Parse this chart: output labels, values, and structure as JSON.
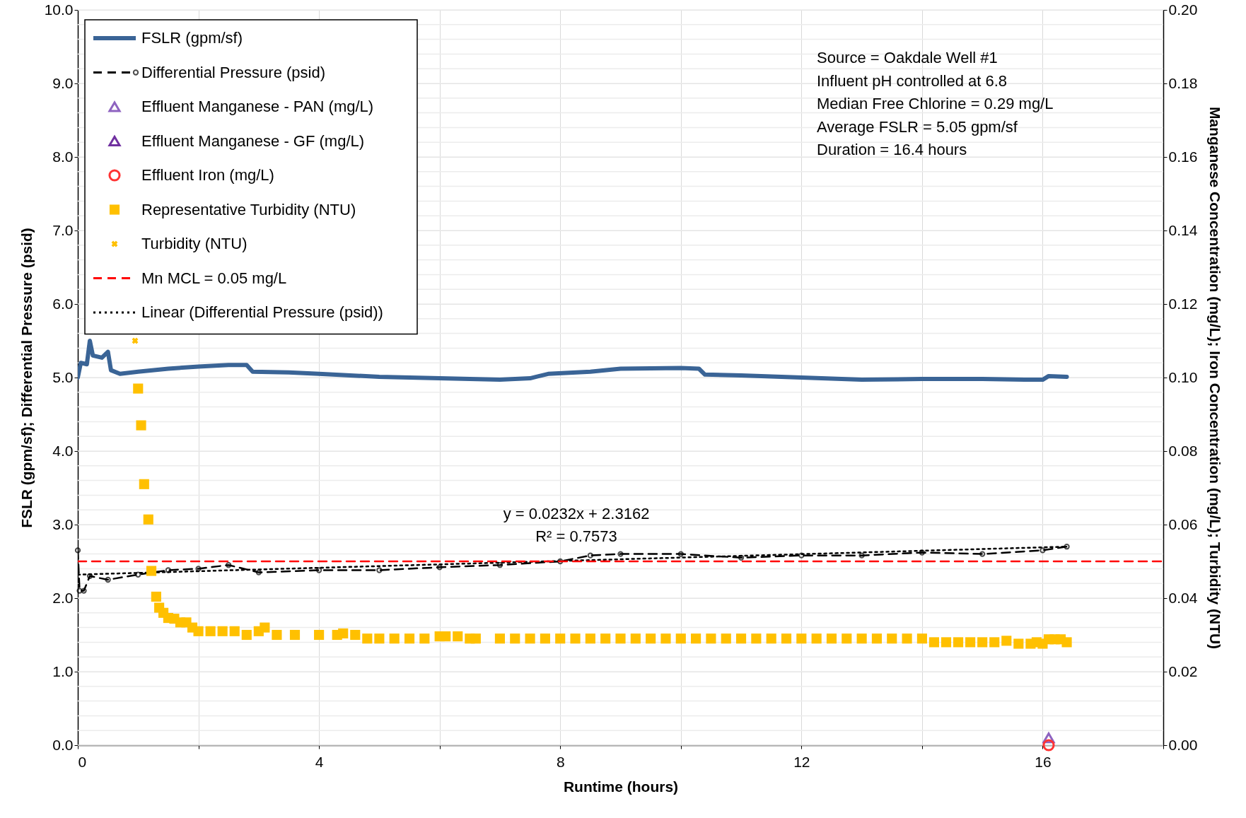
{
  "chart_data": {
    "type": "line",
    "xlabel": "Runtime (hours)",
    "ylabel": "FSLR (gpm/sf); Differential Pressure (psid)",
    "y2label": "Manganese Concentration (mg/L); Iron Concentration (mg/L); Turbidity (NTU)",
    "xlim": [
      0,
      18
    ],
    "xticks": [
      0,
      {
        "value": 2,
        "label": null
      },
      4,
      {
        "value": 6,
        "label": null
      },
      8,
      {
        "value": 10,
        "label": null
      },
      12,
      {
        "value": 14,
        "label": null
      },
      16,
      {
        "value": 18,
        "label": null
      }
    ],
    "ylim": [
      0,
      10
    ],
    "yticks": [
      {
        "value": 0,
        "label": "0.0"
      },
      {
        "value": 1,
        "label": "1.0"
      },
      {
        "value": 2,
        "label": "2.0"
      },
      {
        "value": 3,
        "label": "3.0"
      },
      {
        "value": 4,
        "label": "4.0"
      },
      {
        "value": 5,
        "label": "5.0"
      },
      {
        "value": 6,
        "label": "6.0"
      },
      {
        "value": 7,
        "label": "7.0"
      },
      {
        "value": 8,
        "label": "8.0"
      },
      {
        "value": 9,
        "label": "9.0"
      },
      {
        "value": 10,
        "label": "10.0"
      }
    ],
    "y2lim": [
      0,
      0.2
    ],
    "y2ticks": [
      {
        "value": 0,
        "label": "0.00"
      },
      {
        "value": 0.02,
        "label": "0.02"
      },
      {
        "value": 0.04,
        "label": "0.04"
      },
      {
        "value": 0.06,
        "label": "0.06"
      },
      {
        "value": 0.08,
        "label": "0.08"
      },
      {
        "value": 0.1,
        "label": "0.10"
      },
      {
        "value": 0.12,
        "label": "0.12"
      },
      {
        "value": 0.14,
        "label": "0.14"
      },
      {
        "value": 0.16,
        "label": "0.16"
      },
      {
        "value": 0.18,
        "label": "0.18"
      },
      {
        "value": 0.2,
        "label": "0.20"
      }
    ],
    "grid": true,
    "legend": "top left",
    "annotations": [
      "Source = Oakdale Well #1",
      "Influent pH controlled at 6.8",
      "Median Free Chlorine = 0.29 mg/L",
      "Average FSLR = 5.05 gpm/sf",
      "Duration = 16.4 hours",
      "y = 0.0232x + 2.3162",
      "R² = 0.7573"
    ],
    "series": [
      {
        "name": "FSLR (gpm/sf)",
        "color": "#3a6496",
        "line_style": "solid",
        "marker": "none",
        "x": [
          0,
          0.05,
          0.15,
          0.2,
          0.25,
          0.4,
          0.5,
          0.55,
          0.7,
          1,
          1.5,
          2,
          2.5,
          2.8,
          2.9,
          3.5,
          4,
          5,
          6,
          7,
          7.5,
          7.8,
          8.5,
          9,
          10,
          10.3,
          10.4,
          11,
          12,
          13,
          14,
          15,
          15.7,
          16,
          16.1,
          16.4
        ],
        "values": [
          5.0,
          5.2,
          5.18,
          5.5,
          5.3,
          5.27,
          5.35,
          5.1,
          5.05,
          5.08,
          5.12,
          5.15,
          5.17,
          5.17,
          5.08,
          5.07,
          5.05,
          5.01,
          4.99,
          4.97,
          4.99,
          5.05,
          5.08,
          5.12,
          5.13,
          5.12,
          5.04,
          5.03,
          5.0,
          4.97,
          4.98,
          4.98,
          4.97,
          4.97,
          5.02,
          5.01
        ]
      },
      {
        "name": "Differential Pressure (psid)",
        "color": "#000000",
        "line_style": "dashed",
        "marker": "circle",
        "x": [
          0,
          0.03,
          0.1,
          0.2,
          0.5,
          1,
          1.5,
          2,
          2.5,
          3,
          4,
          5,
          6,
          7,
          8,
          8.5,
          9,
          10,
          11,
          12,
          13,
          14,
          15,
          16,
          16.4
        ],
        "values": [
          2.65,
          2.1,
          2.1,
          2.3,
          2.25,
          2.32,
          2.38,
          2.4,
          2.45,
          2.35,
          2.38,
          2.38,
          2.42,
          2.45,
          2.5,
          2.58,
          2.6,
          2.6,
          2.55,
          2.58,
          2.58,
          2.62,
          2.6,
          2.65,
          2.7
        ]
      },
      {
        "name": "Effluent Manganese - PAN (mg/L)",
        "type": "scatter",
        "axis": "y2",
        "color": "#8e63c0",
        "marker": "triangle",
        "x": [
          16.1
        ],
        "values": [
          0.002
        ]
      },
      {
        "name": "Effluent Manganese - GF (mg/L)",
        "type": "scatter",
        "axis": "y2",
        "color": "#7030a0",
        "marker": "triangle"
      },
      {
        "name": "Effluent Iron (mg/L)",
        "type": "scatter",
        "axis": "y2",
        "color": "#ff3333",
        "marker": "circle",
        "x": [
          16.1
        ],
        "values": [
          0.0
        ]
      },
      {
        "name": "Representative Turbidity (NTU)",
        "type": "scatter",
        "axis": "y2",
        "color": "#ffc000",
        "marker": "square",
        "x": [
          1.0,
          1.05,
          1.1,
          1.17,
          1.22,
          1.3,
          1.35,
          1.42,
          1.5,
          1.6,
          1.7,
          1.8,
          1.9,
          2.0,
          2.2,
          2.4,
          2.6,
          2.8,
          3.0,
          3.1,
          3.3,
          3.6,
          4.0,
          4.3,
          4.4,
          4.6,
          4.8,
          5.0,
          5.25,
          5.5,
          5.75,
          6.0,
          6.1,
          6.3,
          6.5,
          6.6,
          7.0,
          7.25,
          7.5,
          7.75,
          8.0,
          8.25,
          8.5,
          8.75,
          9.0,
          9.25,
          9.5,
          9.75,
          10.0,
          10.25,
          10.5,
          10.75,
          11.0,
          11.25,
          11.5,
          11.75,
          12.0,
          12.25,
          12.5,
          12.75,
          13.0,
          13.25,
          13.5,
          13.75,
          14.0,
          14.2,
          14.4,
          14.6,
          14.8,
          15.0,
          15.2,
          15.4,
          15.6,
          15.8,
          15.9,
          16.0,
          16.1,
          16.2,
          16.3,
          16.4
        ],
        "values": [
          0.097,
          0.087,
          0.071,
          0.0614,
          0.0474,
          0.0404,
          0.0374,
          0.036,
          0.0346,
          0.0344,
          0.0334,
          0.0334,
          0.032,
          0.031,
          0.031,
          0.031,
          0.031,
          0.03,
          0.031,
          0.032,
          0.03,
          0.03,
          0.03,
          0.03,
          0.0304,
          0.03,
          0.029,
          0.029,
          0.029,
          0.029,
          0.029,
          0.0296,
          0.0296,
          0.0296,
          0.029,
          0.029,
          0.029,
          0.029,
          0.029,
          0.029,
          0.029,
          0.029,
          0.029,
          0.029,
          0.029,
          0.029,
          0.029,
          0.029,
          0.029,
          0.029,
          0.029,
          0.029,
          0.029,
          0.029,
          0.029,
          0.029,
          0.029,
          0.029,
          0.029,
          0.029,
          0.029,
          0.029,
          0.029,
          0.029,
          0.029,
          0.028,
          0.028,
          0.028,
          0.028,
          0.028,
          0.028,
          0.0284,
          0.0276,
          0.0276,
          0.028,
          0.0276,
          0.0288,
          0.0288,
          0.0288,
          0.028
        ]
      },
      {
        "name": "Turbidity (NTU)",
        "type": "scatter",
        "axis": "y2",
        "color": "#ffc000",
        "marker": "cross",
        "x": [
          0.95
        ],
        "values": [
          0.11
        ]
      },
      {
        "name": "Mn MCL = 0.05 mg/L",
        "axis": "y2",
        "color": "#ff0000",
        "line_style": "dashed",
        "marker": "none",
        "x": [
          0,
          18
        ],
        "values": [
          0.05,
          0.05
        ]
      },
      {
        "name": "Linear (Differential Pressure (psid))",
        "color": "#000000",
        "line_style": "dotted",
        "marker": "none",
        "x": [
          0,
          16.4
        ],
        "values": [
          2.32,
          2.7
        ]
      }
    ]
  }
}
